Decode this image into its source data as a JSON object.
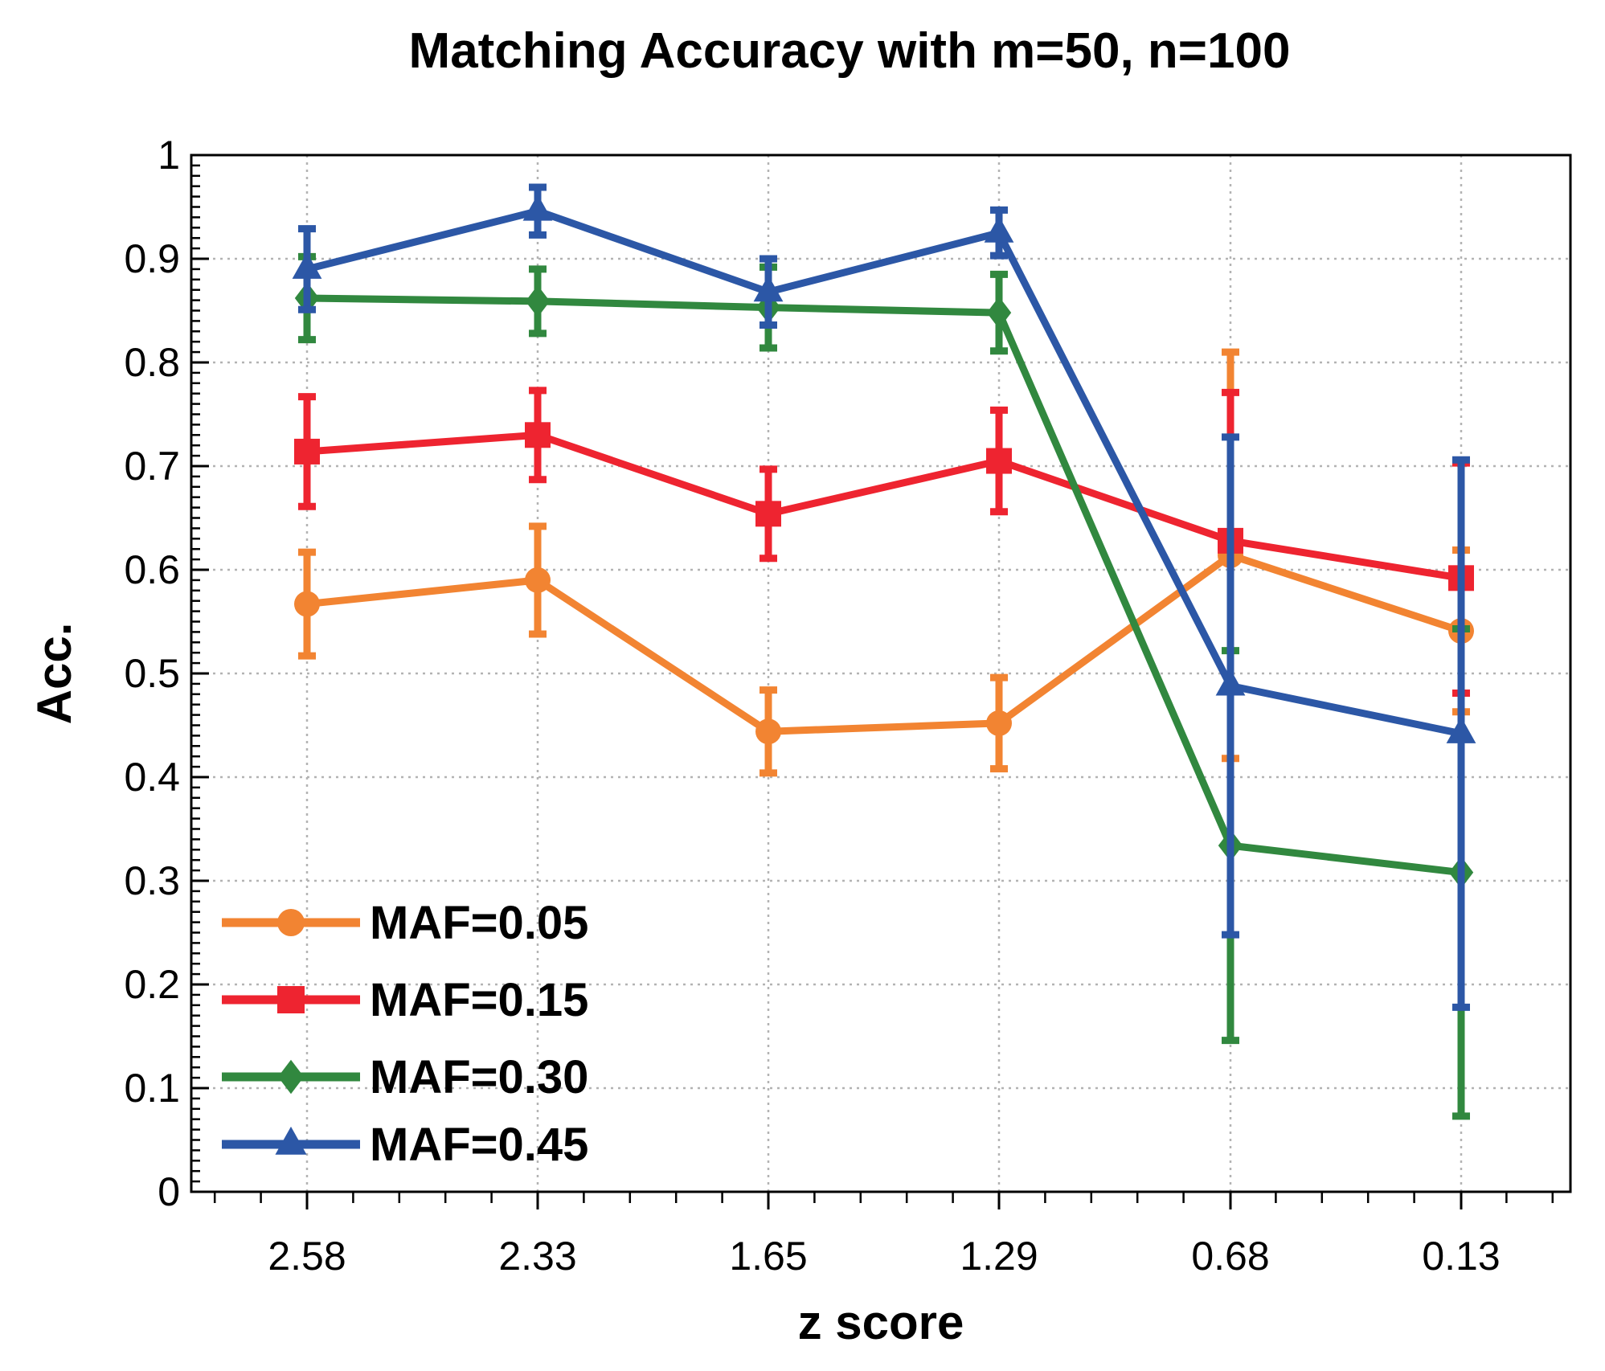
{
  "chart_data": {
    "type": "line",
    "title": "Matching Accuracy with m=50, n=100",
    "xlabel": "z score",
    "ylabel": "Acc.",
    "categories": [
      "2.58",
      "2.33",
      "1.65",
      "1.29",
      "0.68",
      "0.13"
    ],
    "ylim": [
      0,
      1
    ],
    "yticks": [
      "0",
      "0.1",
      "0.2",
      "0.3",
      "0.4",
      "0.5",
      "0.6",
      "0.7",
      "0.8",
      "0.9",
      "1"
    ],
    "grid": true,
    "legend_position": "bottom-left",
    "series": [
      {
        "name": "MAF=0.05",
        "color": "#f28432",
        "marker": "circle",
        "values": [
          0.567,
          0.59,
          0.444,
          0.452,
          0.614,
          0.541
        ],
        "errors": [
          0.05,
          0.052,
          0.04,
          0.044,
          0.196,
          0.078
        ]
      },
      {
        "name": "MAF=0.15",
        "color": "#ee2430",
        "marker": "square",
        "values": [
          0.714,
          0.73,
          0.654,
          0.705,
          0.628,
          0.592
        ],
        "errors": [
          0.053,
          0.043,
          0.043,
          0.049,
          0.143,
          0.111
        ]
      },
      {
        "name": "MAF=0.30",
        "color": "#31883f",
        "marker": "diamond",
        "values": [
          0.862,
          0.859,
          0.853,
          0.848,
          0.334,
          0.308
        ],
        "errors": [
          0.04,
          0.031,
          0.039,
          0.037,
          0.188,
          0.235
        ]
      },
      {
        "name": "MAF=0.45",
        "color": "#2c57a6",
        "marker": "triangle",
        "values": [
          0.89,
          0.946,
          0.868,
          0.925,
          0.488,
          0.442
        ],
        "errors": [
          0.039,
          0.023,
          0.032,
          0.022,
          0.24,
          0.264
        ]
      }
    ]
  }
}
